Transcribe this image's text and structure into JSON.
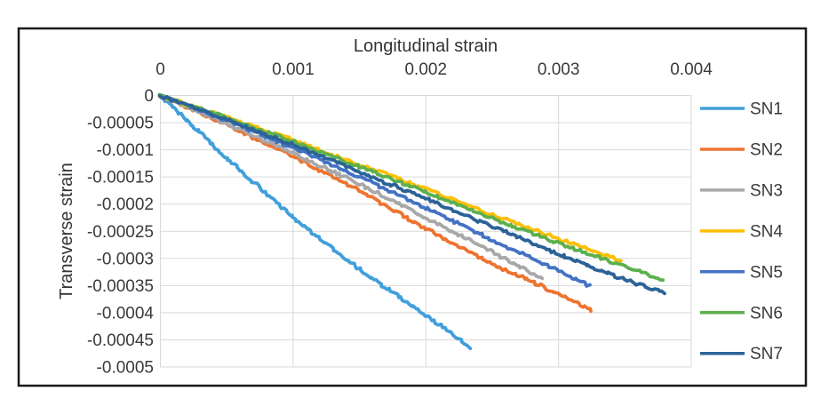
{
  "figure": {
    "background": "#ffffff",
    "border_color": "#1a1a1a"
  },
  "chart_data": {
    "type": "scatter",
    "title": "",
    "xlabel": "Longitudinal strain",
    "ylabel": "Transverse strain",
    "xlim": [
      0,
      0.004
    ],
    "ylim": [
      -0.0005,
      0
    ],
    "grid": true,
    "legend_position": "right",
    "gridline_color": "#d9d9d9",
    "text_color": "#3a3a3a",
    "x_tick_values": [
      0,
      0.001,
      0.002,
      0.003,
      0.004
    ],
    "x_tick_labels": [
      "0",
      "0.001",
      "0.002",
      "0.003",
      "0.004"
    ],
    "y_tick_values": [
      0,
      -5e-05,
      -0.0001,
      -0.00015,
      -0.0002,
      -0.00025,
      -0.0003,
      -0.00035,
      -0.0004,
      -0.00045,
      -0.0005
    ],
    "y_tick_labels": [
      "0",
      "-0.00005",
      "-0.0001",
      "-0.00015",
      "-0.0002",
      "-0.00025",
      "-0.0003",
      "-0.00035",
      "-0.0004",
      "-0.00045",
      "-0.0005"
    ],
    "series": [
      {
        "name": "SN1",
        "color": "#419fdb",
        "points": [
          [
            0,
            0
          ],
          [
            0.0005,
            -0.000115
          ],
          [
            0.001,
            -0.000225
          ],
          [
            0.0015,
            -0.00032
          ],
          [
            0.002,
            -0.000405
          ],
          [
            0.00234,
            -0.000465
          ]
        ]
      },
      {
        "name": "SN2",
        "color": "#ed7431",
        "points": [
          [
            0,
            0
          ],
          [
            0.0005,
            -5.4e-05
          ],
          [
            0.001,
            -0.000112
          ],
          [
            0.0015,
            -0.000175
          ],
          [
            0.002,
            -0.000245
          ],
          [
            0.0025,
            -0.00031
          ],
          [
            0.003,
            -0.000365
          ],
          [
            0.00325,
            -0.000395
          ]
        ]
      },
      {
        "name": "SN3",
        "color": "#a8a8a8",
        "points": [
          [
            0,
            0
          ],
          [
            0.0005,
            -5.2e-05
          ],
          [
            0.001,
            -0.000106
          ],
          [
            0.0015,
            -0.000163
          ],
          [
            0.002,
            -0.000225
          ],
          [
            0.0025,
            -0.000288
          ],
          [
            0.00288,
            -0.000338
          ]
        ]
      },
      {
        "name": "SN4",
        "color": "#febf01",
        "points": [
          [
            0,
            0
          ],
          [
            0.0005,
            -4e-05
          ],
          [
            0.001,
            -8.2e-05
          ],
          [
            0.0015,
            -0.000127
          ],
          [
            0.002,
            -0.000172
          ],
          [
            0.0025,
            -0.00022
          ],
          [
            0.003,
            -0.000264
          ],
          [
            0.00347,
            -0.000303
          ]
        ]
      },
      {
        "name": "SN5",
        "color": "#4472c4",
        "points": [
          [
            0,
            0
          ],
          [
            0.0005,
            -4.6e-05
          ],
          [
            0.001,
            -9.6e-05
          ],
          [
            0.0015,
            -0.00015
          ],
          [
            0.002,
            -0.000207
          ],
          [
            0.0025,
            -0.000266
          ],
          [
            0.003,
            -0.000323
          ],
          [
            0.00323,
            -0.00035
          ]
        ]
      },
      {
        "name": "SN6",
        "color": "#5cb04c",
        "points": [
          [
            0,
            0
          ],
          [
            0.0005,
            -4.1e-05
          ],
          [
            0.001,
            -8.5e-05
          ],
          [
            0.0015,
            -0.000131
          ],
          [
            0.002,
            -0.000178
          ],
          [
            0.0025,
            -0.000226
          ],
          [
            0.003,
            -0.000272
          ],
          [
            0.0035,
            -0.000315
          ],
          [
            0.00378,
            -0.000339
          ]
        ]
      },
      {
        "name": "SN7",
        "color": "#2b6398",
        "points": [
          [
            0,
            0
          ],
          [
            0.0005,
            -4.4e-05
          ],
          [
            0.001,
            -9.1e-05
          ],
          [
            0.0015,
            -0.00014
          ],
          [
            0.002,
            -0.00019
          ],
          [
            0.0025,
            -0.000241
          ],
          [
            0.003,
            -0.000292
          ],
          [
            0.0035,
            -0.000339
          ],
          [
            0.0038,
            -0.000364
          ]
        ]
      }
    ]
  }
}
